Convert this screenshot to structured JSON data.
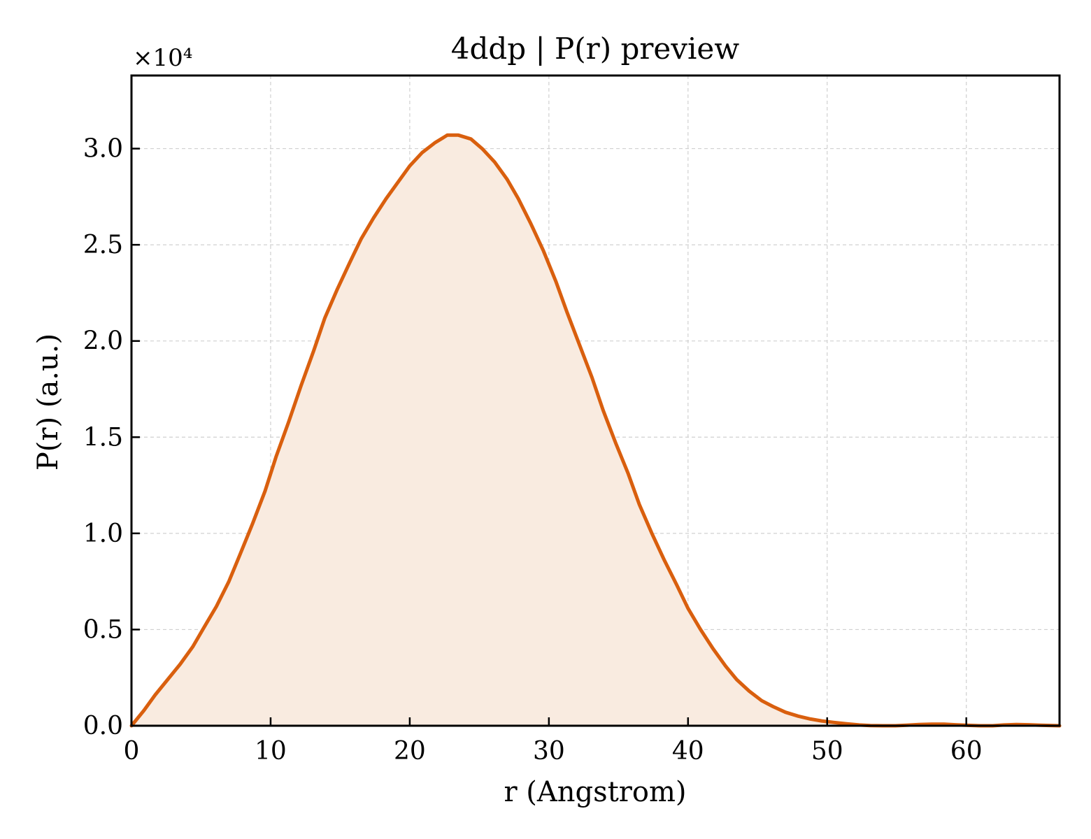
{
  "chart_data": {
    "type": "area",
    "title": "4ddp | P(r) preview",
    "xlabel": "r (Angstrom)",
    "ylabel": "P(r) (a.u.)",
    "y_multiplier_label": "×10⁴",
    "xlim": [
      0,
      66.7
    ],
    "ylim": [
      0,
      3.38
    ],
    "y_scale_factor": 10000,
    "xticks": [
      0,
      10,
      20,
      30,
      40,
      50,
      60
    ],
    "xtick_labels": [
      "0",
      "10",
      "20",
      "30",
      "40",
      "50",
      "60"
    ],
    "yticks": [
      0.0,
      0.5,
      1.0,
      1.5,
      2.0,
      2.5,
      3.0
    ],
    "ytick_labels": [
      "0.0",
      "0.5",
      "1.0",
      "1.5",
      "2.0",
      "2.5",
      "3.0"
    ],
    "grid": true,
    "legend": "none",
    "colors": {
      "line": "#d95f0e",
      "fill": "#f9ebe0",
      "grid": "#d0d0d0",
      "axes": "#000000"
    },
    "series": [
      {
        "x": [
          0,
          0.9,
          1.7,
          2.6,
          3.5,
          4.4,
          5.2,
          6.1,
          7.0,
          7.8,
          8.7,
          9.6,
          10.4,
          11.3,
          12.2,
          13.1,
          13.9,
          14.8,
          15.7,
          16.5,
          17.4,
          18.3,
          19.2,
          20.0,
          20.9,
          21.8,
          22.7,
          23.5,
          24.4,
          25.2,
          26.1,
          27.0,
          27.8,
          28.7,
          29.6,
          30.5,
          31.3,
          32.2,
          33.1,
          33.9,
          34.8,
          35.7,
          36.5,
          37.4,
          38.3,
          39.2,
          40.0,
          40.9,
          41.8,
          42.7,
          43.5,
          44.4,
          45.3,
          46.1,
          47.0,
          47.9,
          48.8,
          49.6,
          50.5,
          51.4,
          52.3,
          53.1,
          54.0,
          54.9,
          55.7,
          56.6,
          57.5,
          58.4,
          59.2,
          60.1,
          61.0,
          61.9,
          62.7,
          63.6,
          64.5,
          65.3,
          66.2,
          66.7
        ],
        "values": [
          0.0,
          0.08,
          0.16,
          0.24,
          0.32,
          0.41,
          0.51,
          0.62,
          0.75,
          0.89,
          1.05,
          1.22,
          1.4,
          1.58,
          1.77,
          1.95,
          2.12,
          2.27,
          2.41,
          2.53,
          2.64,
          2.74,
          2.83,
          2.91,
          2.98,
          3.03,
          3.07,
          3.07,
          3.05,
          3.0,
          2.93,
          2.84,
          2.74,
          2.61,
          2.47,
          2.31,
          2.15,
          1.98,
          1.81,
          1.64,
          1.47,
          1.31,
          1.15,
          1.0,
          0.86,
          0.73,
          0.61,
          0.5,
          0.4,
          0.31,
          0.24,
          0.18,
          0.13,
          0.1,
          0.07,
          0.05,
          0.035,
          0.025,
          0.017,
          0.01,
          0.004,
          0.001,
          0.0,
          0.0,
          0.003,
          0.006,
          0.008,
          0.008,
          0.005,
          0.002,
          0.0,
          0.0,
          0.004,
          0.006,
          0.005,
          0.003,
          0.001,
          0.0
        ]
      }
    ]
  }
}
